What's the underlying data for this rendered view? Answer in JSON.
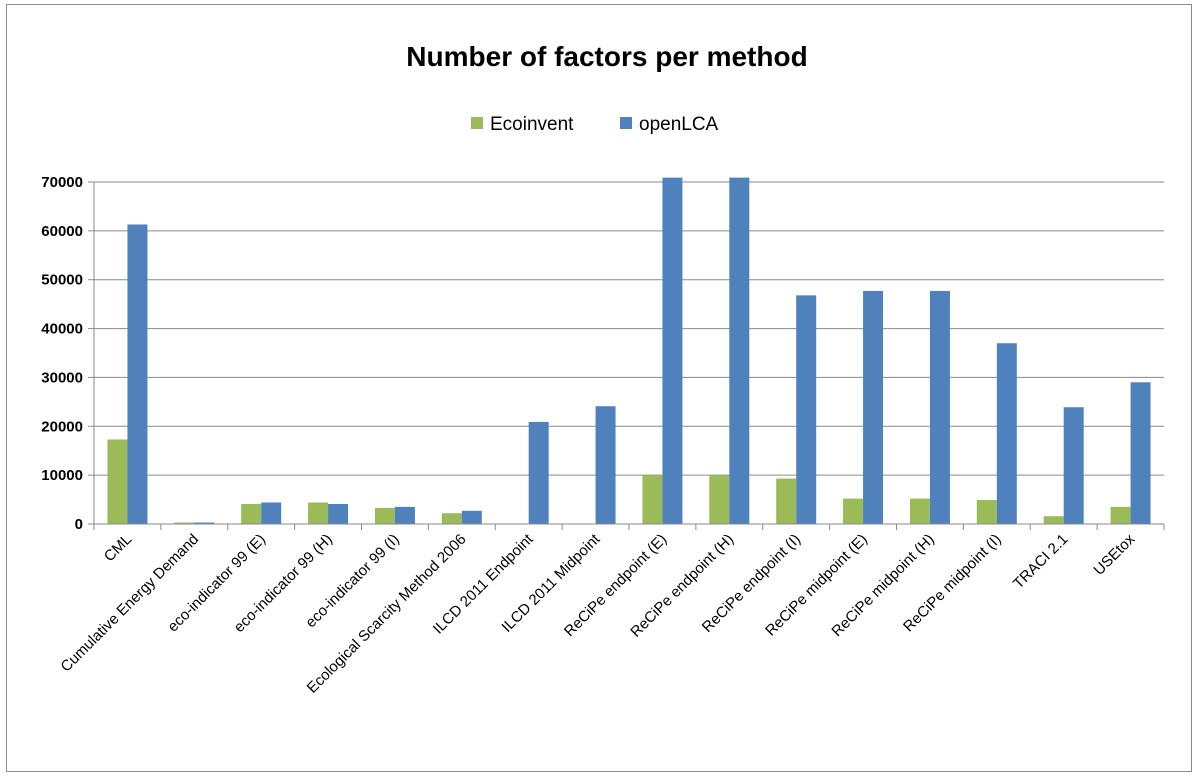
{
  "chart_data": {
    "type": "bar",
    "title": "Number of factors per method",
    "xlabel": "",
    "ylabel": "",
    "ylim": [
      0,
      70000
    ],
    "ytick_step": 10000,
    "grid": true,
    "legend_position": "top",
    "categories": [
      "CML",
      "Cumulative Energy Demand",
      "eco-indicator 99 (E)",
      "eco-indicator 99 (H)",
      "eco-indicator 99 (I)",
      "Ecological Scarcity Method 2006",
      "ILCD 2011 Endpoint",
      "ILCD 2011 Midpoint",
      "ReCiPe endpoint (E)",
      "ReCiPe endpoint (H)",
      "ReCiPe endpoint (I)",
      "ReCiPe midpoint (E)",
      "ReCiPe midpoint (H)",
      "ReCiPe midpoint (I)",
      "TRACI 2.1",
      "USEtox"
    ],
    "series": [
      {
        "name": "Ecoinvent",
        "color": "#9bbb59",
        "values": [
          17300,
          300,
          4100,
          4400,
          3300,
          2200,
          0,
          0,
          10000,
          10000,
          9300,
          5200,
          5200,
          4900,
          1600,
          3500
        ]
      },
      {
        "name": "openLCA",
        "color": "#4f81bd",
        "values": [
          61300,
          300,
          4400,
          4100,
          3500,
          2700,
          20900,
          24100,
          70900,
          70900,
          46800,
          47700,
          47700,
          37000,
          23900,
          29000
        ]
      }
    ]
  }
}
